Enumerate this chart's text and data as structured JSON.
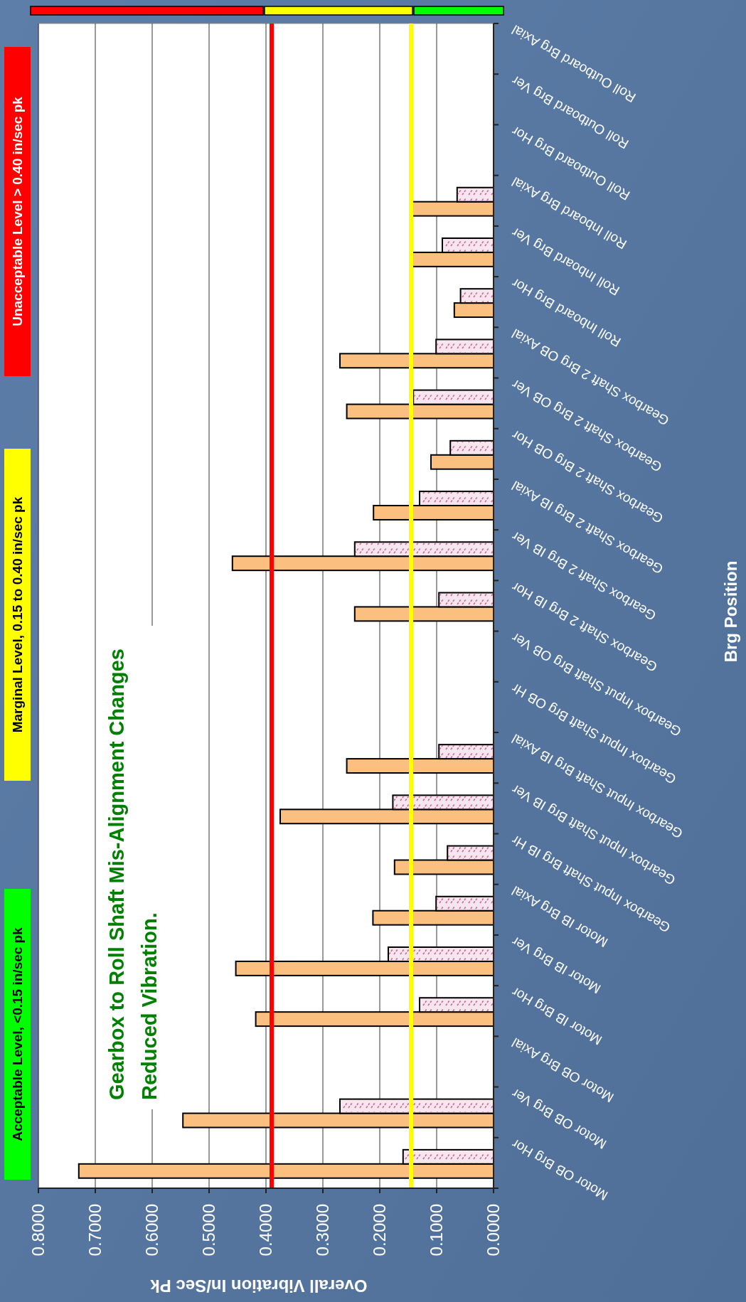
{
  "chart_data": {
    "type": "bar",
    "orientation": "horizontal",
    "xlabel": "Overall Vibration In/Sec Pk",
    "ylabel": "Brg Position",
    "categories": [
      "Roll Outboard Brg Axial",
      "Roll Outboard Brg Ver",
      "Roll Outboard Brg Hor",
      "Roll Inboard Brg Axial",
      "Roll Inboard Brg Ver",
      "Roll Inboard Brg Hor",
      "Gearbox Shaft 2 Brg OB Axial",
      "Gearbox Shaft 2 Brg OB Ver",
      "Gearbox Shaft 2 Brg OB Hor",
      "Gearbox Shaft 2 Brg IB Axial",
      "Gearbox Shaft 2 Brg IB Ver",
      "Gearbox Shaft 2 Brg IB Hor",
      "Gearbox Input Shaft Brg OB Ver",
      "Gearbox Input Shaft Brg OB Hr",
      "Gearbox Input Shaft Brg IB Axial",
      "Gearbox Input Shaft Brg IB Ver",
      "Gearbox Input Shaft Brg IB Hr",
      "Motor IB Brg Axial",
      "Motor IB Brg Ver",
      "Motor IB Brg Hor",
      "Motor OB Brg Axial",
      "Motor OB Brg Ver",
      "Motor OB Brg Hor"
    ],
    "series": [
      {
        "color": "#fbbf80",
        "values": [
          null,
          null,
          null,
          0.146,
          0.143,
          0.069,
          0.27,
          0.258,
          0.11,
          0.211,
          0.459,
          0.244,
          null,
          null,
          0.258,
          0.375,
          0.174,
          0.212,
          0.453,
          0.418,
          null,
          0.546,
          0.729
        ]
      },
      {
        "color": "#f7e6ee",
        "values": [
          null,
          null,
          null,
          0.064,
          0.09,
          0.058,
          0.101,
          0.141,
          0.076,
          0.13,
          0.244,
          0.096,
          null,
          null,
          0.096,
          0.177,
          0.081,
          0.101,
          0.185,
          0.13,
          null,
          0.27,
          0.159
        ]
      }
    ],
    "xlim": [
      0.8,
      0
    ],
    "xticks": [
      {
        "value": 0.8,
        "label": "0.8000"
      },
      {
        "value": 0.7,
        "label": "0.7000"
      },
      {
        "value": 0.6,
        "label": "0.6000"
      },
      {
        "value": 0.5,
        "label": "0.5000"
      },
      {
        "value": 0.4,
        "label": "0.4000"
      },
      {
        "value": 0.3,
        "label": "0.3000"
      },
      {
        "value": 0.2,
        "label": "0.2000"
      },
      {
        "value": 0.1,
        "label": "0.1000"
      },
      {
        "value": 0,
        "label": "0.0000"
      }
    ],
    "grid": "x",
    "ref_lines": [
      {
        "axis": "x",
        "value": 0.39,
        "color": "#ff0000"
      },
      {
        "axis": "x",
        "value": 0.145,
        "color": "#ffff00"
      }
    ],
    "annotations": [
      "Unacceptable Level > 0.40 in/sec pk",
      "Marginal Level, 0.15 to 0.40 in/sec pk",
      "Acceptable Level, <0.15 in/sec pk",
      "Gearbox to Roll Shaft Mis-Alignment Changes\nReduced Vibration."
    ]
  }
}
